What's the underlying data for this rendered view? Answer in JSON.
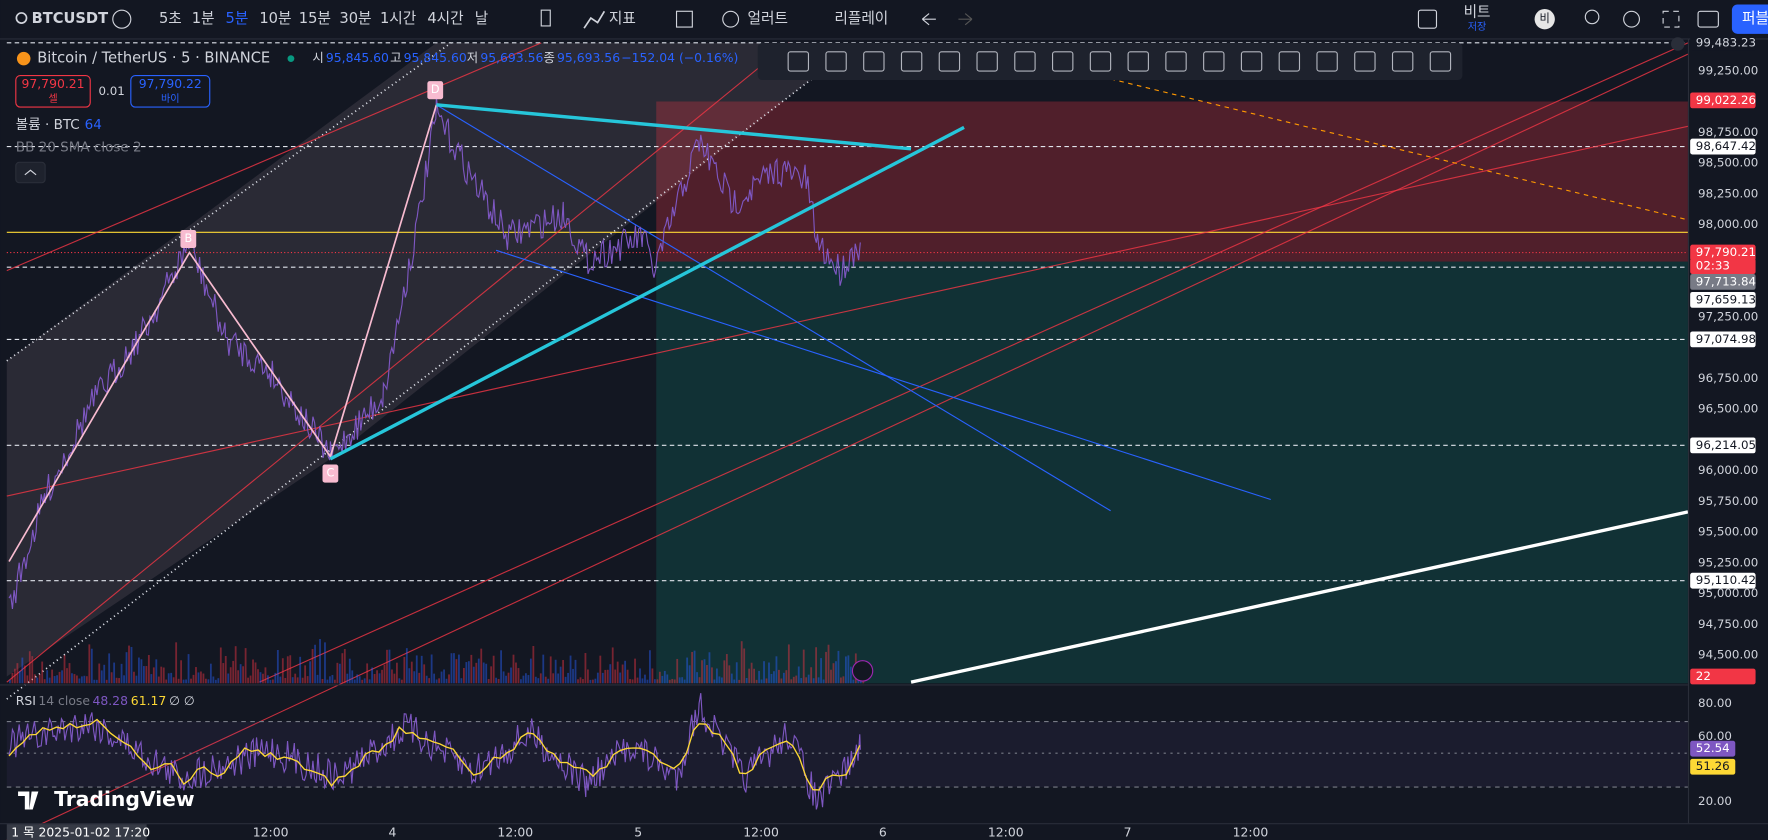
{
  "toolbar": {
    "symbol": "BTCUSDT",
    "intervals": [
      "5초",
      "1분",
      "5분",
      "10분",
      "15분",
      "30분",
      "1시간",
      "4시간",
      "날"
    ],
    "indicators": "지표",
    "alerts": "얼러트",
    "replay": "리플레이",
    "layout_name": "비트",
    "save": "저장",
    "avatar": "비",
    "publish": "퍼블"
  },
  "legend": {
    "title": "Bitcoin / TetherUS · 5 · BINANCE",
    "open_label": "시",
    "open": "95,845.60",
    "high_label": "고",
    "high": "95,845.60",
    "low_label": "저",
    "low": "95,693.56",
    "close_label": "종",
    "close": "95,693.56",
    "change": "−152.04 (−0.16%)",
    "sell_price": "97,790.21",
    "sell": "셀",
    "quantity": "0.01",
    "buy_price": "97,790.22",
    "buy": "바이",
    "volume": "볼륨 · BTC",
    "volume_value": "64",
    "bb": "BB 20 SMA close 2"
  },
  "pattern_points": [
    "B",
    "C",
    "D"
  ],
  "price_scale": [
    "99,250.00",
    "98,750.00",
    "98,500.00",
    "98,250.00",
    "98,000.00",
    "97,250.00",
    "96,750.00",
    "96,500.00",
    "96,000.00",
    "95,750.00",
    "95,500.00",
    "95,250.00",
    "95,000.00",
    "94,750.00",
    "94,500.00"
  ],
  "price_markers": [
    "99,483.23",
    "99,022.26",
    "98,647.42",
    "97,790.21",
    "02:33",
    "97,713.84",
    "97,659.13",
    "97,074.98",
    "96,214.05",
    "95,110.42",
    "22"
  ],
  "rsi": {
    "title": "RSI",
    "params": "14 close",
    "value": "48.28",
    "ma": "61.17",
    "extra": "∅ ∅",
    "scale": [
      "80.00",
      "60.00",
      "20.00"
    ],
    "markers": [
      "52.54",
      "51.26"
    ]
  },
  "time_axis": {
    "cursor": "1 목 2025-01-02 17:20",
    "labels": [
      "12:00",
      "4",
      "12:00",
      "5",
      "12:00",
      "6",
      "12:00",
      "7",
      "12:00"
    ]
  },
  "brand": "TradingView"
}
